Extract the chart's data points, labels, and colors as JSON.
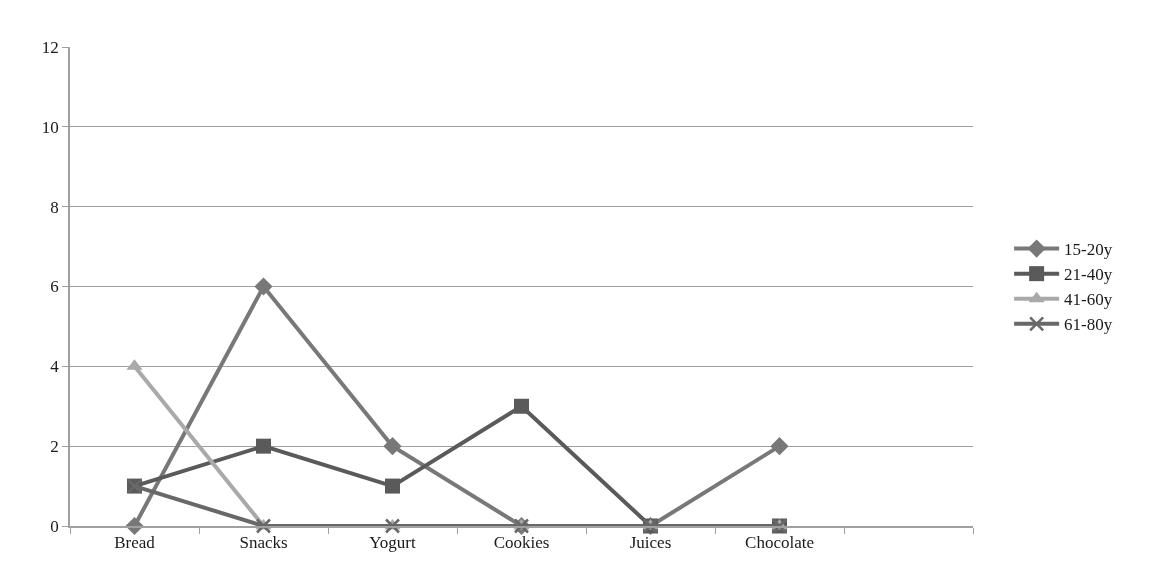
{
  "chart_data": {
    "type": "line",
    "categories": [
      "Bread",
      "Snacks",
      "Yogurt",
      "Cookies",
      "Juices",
      "Chocolate",
      null
    ],
    "series": [
      {
        "name": "15-20y",
        "color": "#787878",
        "marker": "diamond",
        "values": [
          0,
          6,
          2,
          0,
          0,
          2,
          null
        ]
      },
      {
        "name": "21-40y",
        "color": "#5a5a5a",
        "marker": "square",
        "values": [
          1,
          2,
          1,
          3,
          0,
          0,
          null
        ]
      },
      {
        "name": "41-60y",
        "color": "#a9a9a9",
        "marker": "triangle",
        "values": [
          4,
          0,
          0,
          0,
          0,
          0,
          null
        ]
      },
      {
        "name": "61-80y",
        "color": "#686868",
        "marker": "cross",
        "values": [
          1,
          0,
          0,
          0,
          0,
          0,
          null
        ]
      }
    ],
    "ylim": [
      0,
      12
    ],
    "yticks": [
      0,
      2,
      4,
      6,
      8,
      10,
      12
    ],
    "grid": "y",
    "legend": "right",
    "line_style": "solid"
  }
}
